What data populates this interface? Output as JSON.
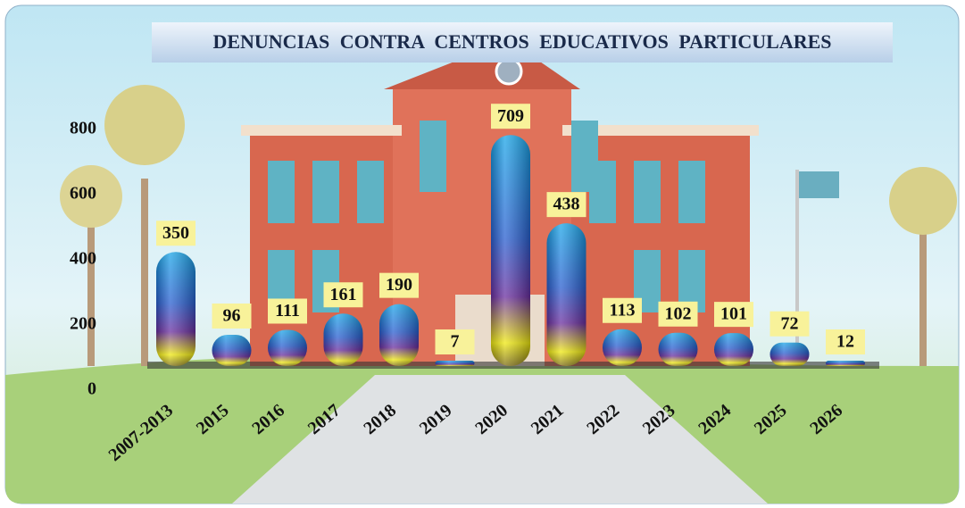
{
  "chart_data": {
    "type": "bar",
    "title": "DENUNCIAS CONTRA CENTROS EDUCATIVOS PARTICULARES",
    "categories": [
      "2007-2013",
      "2015",
      "2016",
      "2017",
      "2018",
      "2019",
      "2020",
      "2021",
      "2022",
      "2023",
      "2024",
      "2025",
      "2026"
    ],
    "values": [
      350,
      96,
      111,
      161,
      190,
      7,
      709,
      438,
      113,
      102,
      101,
      72,
      12
    ],
    "ylim": [
      0,
      800
    ],
    "yticks": [
      0,
      200,
      400,
      600,
      800
    ],
    "grid": false
  }
}
